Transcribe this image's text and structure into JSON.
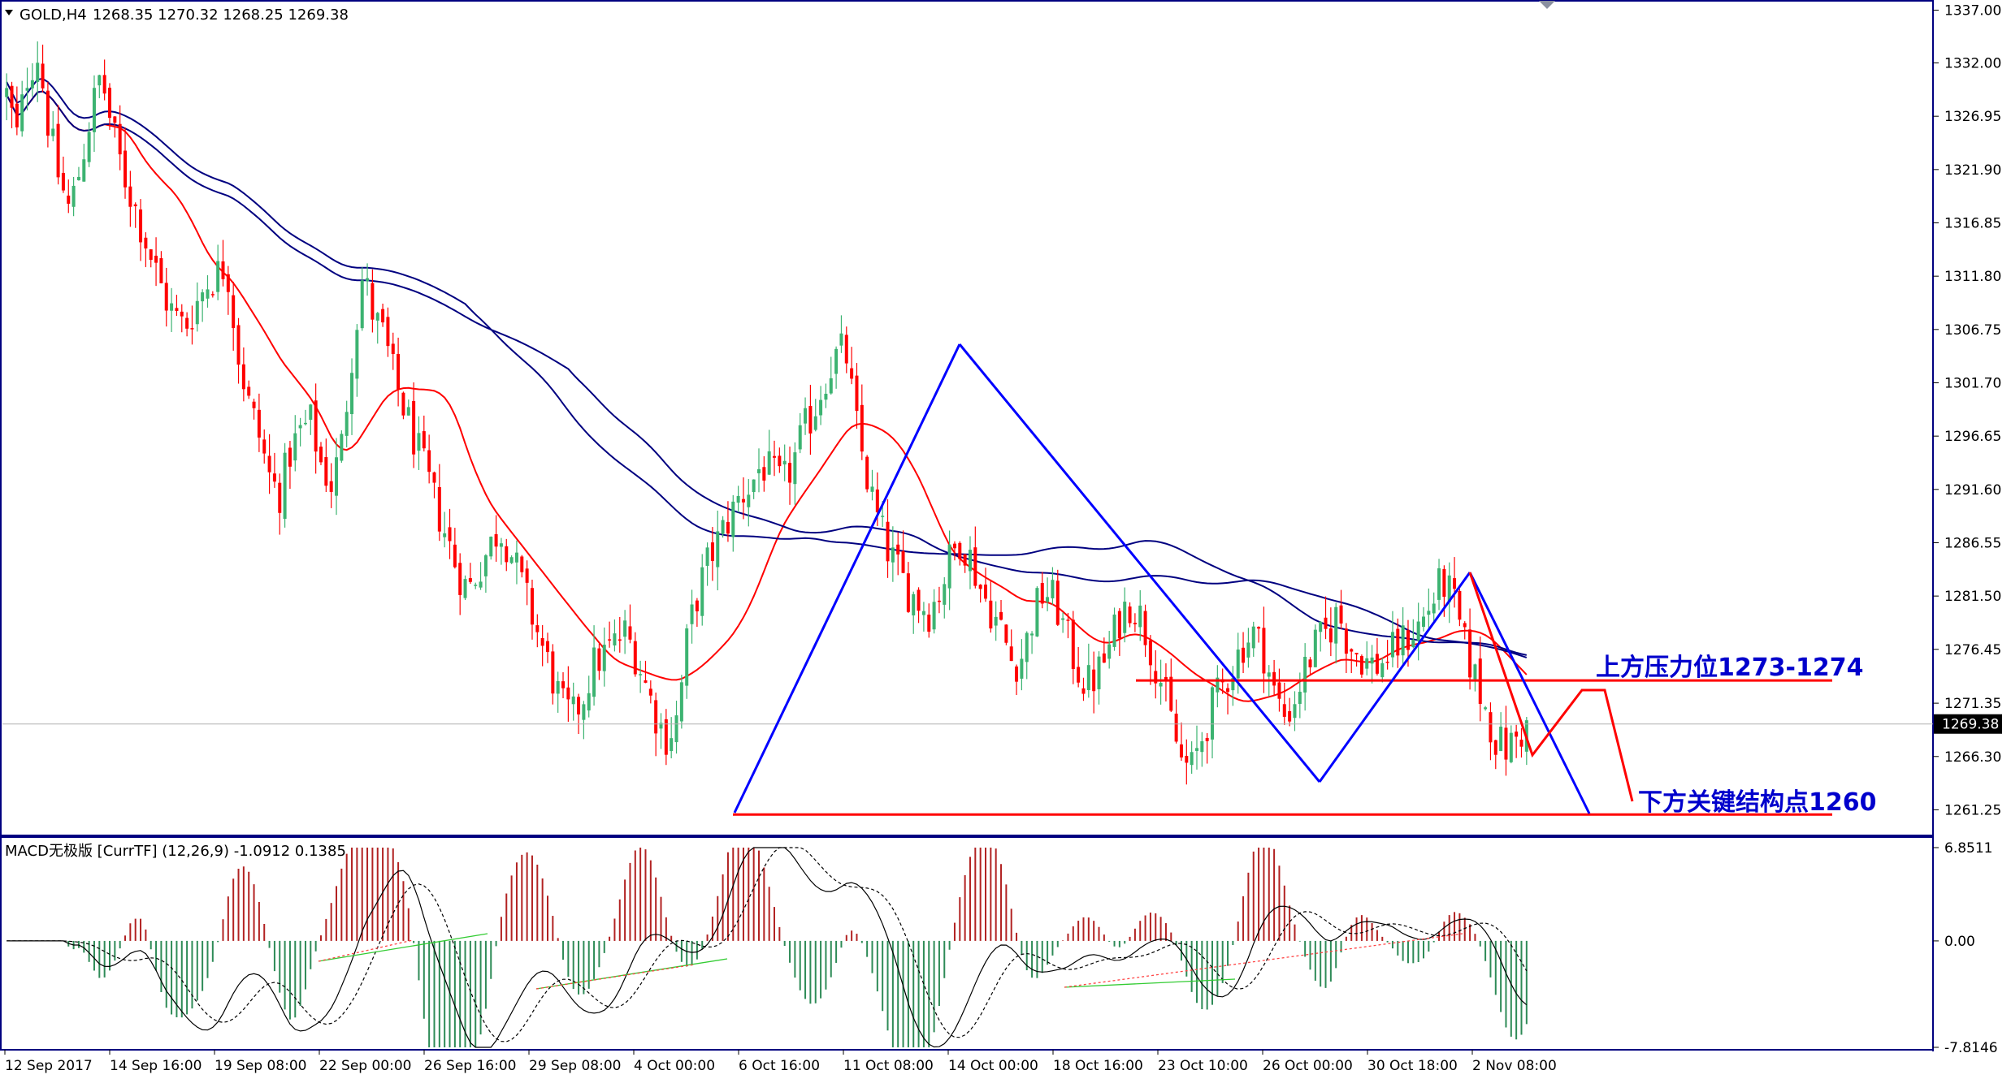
{
  "header": {
    "symbol": "GOLD,H4",
    "ohlc": "1268.35 1270.32 1268.25 1269.38"
  },
  "macd_header": "MACD无极版 [CurrTF] (12,26,9) -1.0912 0.1385",
  "current_price_label": "1269.38",
  "annotations": {
    "resistance": "上方压力位1273-1274",
    "support": "下方关键结构点1260"
  },
  "colors": {
    "bull_candle": "#3cb371",
    "bear_candle": "#ff0000",
    "ma_red": "#ff0000",
    "ma_navy": "#000080",
    "pattern_line": "#0000ff",
    "level_line": "#ff0000",
    "annotation_text": "#0000cc",
    "frame": "#000080",
    "macd_up": "#b22222",
    "macd_down": "#2e8b57"
  },
  "chart_data": [
    {
      "type": "candlestick",
      "title": "GOLD,H4",
      "y_ticks": [
        "1337.00",
        "1332.00",
        "1326.95",
        "1321.90",
        "1316.85",
        "1311.80",
        "1306.75",
        "1301.70",
        "1296.65",
        "1291.60",
        "1286.55",
        "1281.50",
        "1276.45",
        "1271.35",
        "1266.30",
        "1261.25"
      ],
      "x_ticks": [
        "12 Sep 2017",
        "14 Sep 16:00",
        "19 Sep 08:00",
        "22 Sep 00:00",
        "26 Sep 16:00",
        "29 Sep 08:00",
        "4 Oct 00:00",
        "6 Oct 16:00",
        "11 Oct 08:00",
        "14 Oct 00:00",
        "18 Oct 16:00",
        "23 Oct 10:00",
        "26 Oct 00:00",
        "30 Oct 18:00",
        "2 Nov 08:00"
      ],
      "ylim": [
        1258.9,
        1337.5
      ],
      "current_price": 1269.38,
      "horizontal_levels": [
        1273.5,
        1260.8
      ],
      "trend_points": [
        {
          "x": "6 Oct 16:00",
          "y": 1260.8
        },
        {
          "x": "14 Oct 00:00",
          "y": 1305.3
        },
        {
          "x": "2 Nov 08:00 region",
          "y": 1260.5
        }
      ],
      "waypoints_close": [
        1329,
        1325,
        1331,
        1333,
        1326,
        1321,
        1318,
        1322,
        1327,
        1331,
        1326,
        1322,
        1319,
        1316,
        1313,
        1310,
        1308,
        1307,
        1309,
        1311,
        1312,
        1313,
        1305,
        1300,
        1297,
        1293,
        1291,
        1295,
        1297,
        1298,
        1294,
        1292,
        1296,
        1305,
        1312,
        1308,
        1306,
        1302,
        1299,
        1296,
        1293,
        1290,
        1287,
        1284,
        1282,
        1284,
        1286,
        1288,
        1286,
        1283,
        1280,
        1277,
        1274,
        1271,
        1270,
        1272,
        1275,
        1276,
        1277,
        1278,
        1276,
        1273,
        1270,
        1268,
        1270,
        1278,
        1282,
        1285,
        1287,
        1289,
        1291,
        1292,
        1294,
        1293,
        1292,
        1294,
        1297,
        1299,
        1302,
        1304,
        1305,
        1298,
        1293,
        1289,
        1286,
        1284,
        1282,
        1281,
        1280,
        1282,
        1285,
        1287,
        1285,
        1282,
        1280,
        1278,
        1275,
        1276,
        1280,
        1282,
        1281,
        1278,
        1275,
        1273,
        1274,
        1276,
        1279,
        1281,
        1280,
        1277,
        1274,
        1270,
        1266,
        1265,
        1268,
        1271,
        1273,
        1275,
        1277,
        1278,
        1276,
        1272,
        1270,
        1272,
        1275,
        1277,
        1278,
        1280,
        1277,
        1276,
        1275,
        1275,
        1276,
        1277,
        1278,
        1279,
        1281,
        1283,
        1281,
        1277,
        1274,
        1271,
        1268,
        1267,
        1268,
        1269
      ]
    },
    {
      "type": "bar",
      "title": "MACD无极版 [CurrTF] (12,26,9)",
      "values_label": [
        -1.0912,
        0.1385
      ],
      "y_ticks": [
        "6.8511",
        "0.00",
        "-7.8146"
      ],
      "ylim": [
        -7.8146,
        6.8511
      ]
    }
  ]
}
